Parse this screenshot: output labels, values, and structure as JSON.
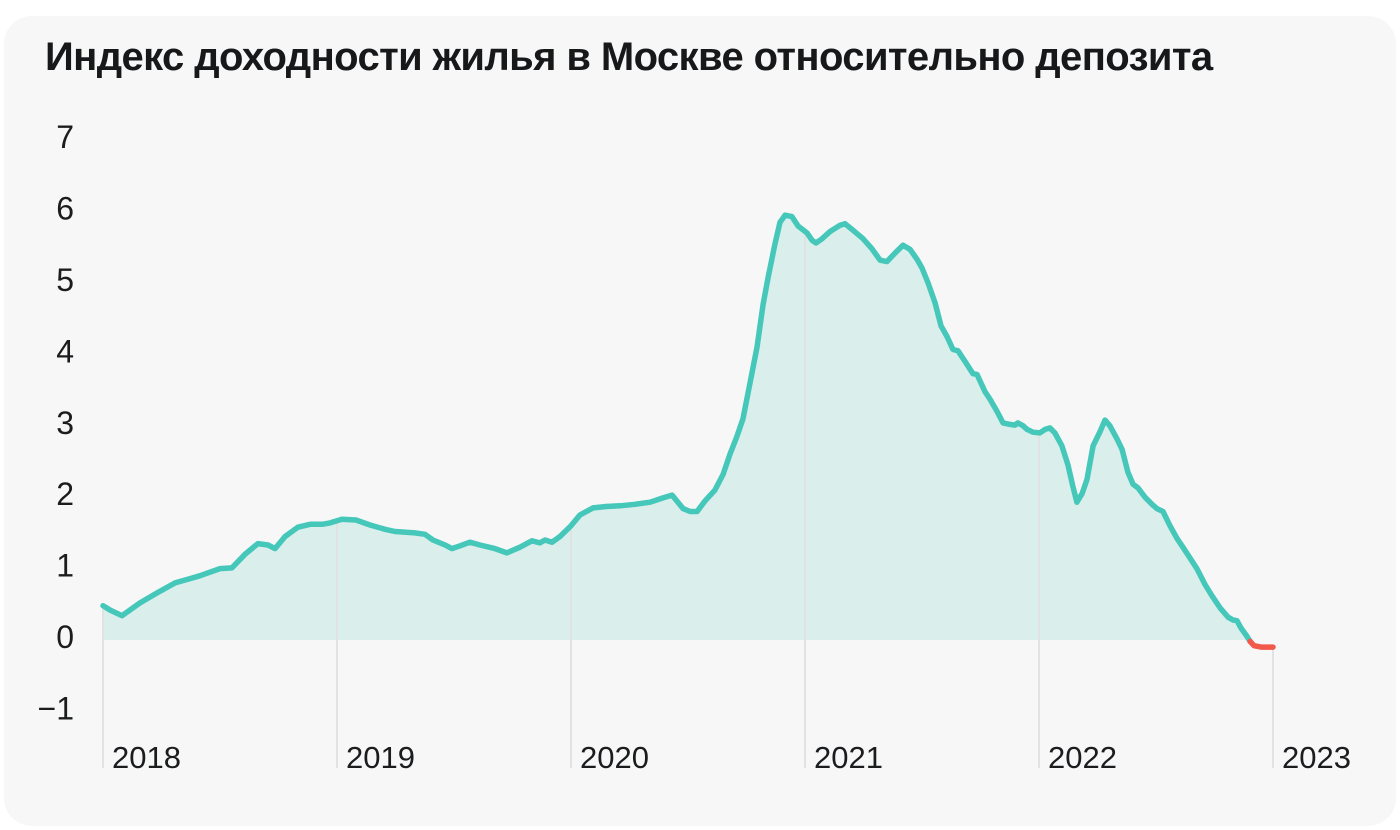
{
  "page": {
    "background_color": "#ffffff",
    "card_background_color": "#f7f7f8"
  },
  "chart_data": {
    "type": "area",
    "title": "Индекс доходности жилья в Москве относительно депозита",
    "xlabel": "",
    "ylabel": "",
    "legend": "none",
    "grid": "vertical drop lines at each year boundary, from curve down to axis labels; no horizontal gridlines",
    "xlim": [
      2018,
      2023
    ],
    "ylim": [
      -1.8,
      7.5
    ],
    "x_ticks": [
      2018,
      2019,
      2020,
      2021,
      2022,
      2023
    ],
    "x_tick_labels": [
      "2018",
      "2019",
      "2020",
      "2021",
      "2022",
      "2023"
    ],
    "y_ticks": [
      7,
      6,
      5,
      4,
      3,
      2,
      1,
      0,
      -1
    ],
    "y_tick_labels": [
      "7",
      "6",
      "5",
      "4",
      "3",
      "2",
      "1",
      "0",
      "−1"
    ],
    "colors": {
      "line": "#45c7ba",
      "fill": "#daeeec",
      "negative_line": "#f2594a",
      "gridline": "#e2e2e2",
      "text": "#1a1c1e"
    },
    "series": [
      {
        "name": "index",
        "color": "#45c7ba",
        "points": [
          [
            2018.0,
            0.48
          ],
          [
            2018.03,
            0.42
          ],
          [
            2018.081,
            0.34
          ],
          [
            2018.158,
            0.52
          ],
          [
            2018.231,
            0.66
          ],
          [
            2018.308,
            0.8
          ],
          [
            2018.372,
            0.86
          ],
          [
            2018.415,
            0.9
          ],
          [
            2018.5,
            1.0
          ],
          [
            2018.551,
            1.01
          ],
          [
            2018.607,
            1.2
          ],
          [
            2018.662,
            1.35
          ],
          [
            2018.705,
            1.33
          ],
          [
            2018.735,
            1.28
          ],
          [
            2018.778,
            1.45
          ],
          [
            2018.833,
            1.58
          ],
          [
            2018.885,
            1.62
          ],
          [
            2018.936,
            1.62
          ],
          [
            2018.97,
            1.64
          ],
          [
            2019.021,
            1.69
          ],
          [
            2019.081,
            1.68
          ],
          [
            2019.141,
            1.61
          ],
          [
            2019.205,
            1.55
          ],
          [
            2019.248,
            1.52
          ],
          [
            2019.333,
            1.5
          ],
          [
            2019.376,
            1.48
          ],
          [
            2019.41,
            1.4
          ],
          [
            2019.462,
            1.33
          ],
          [
            2019.491,
            1.28
          ],
          [
            2019.526,
            1.32
          ],
          [
            2019.568,
            1.37
          ],
          [
            2019.611,
            1.33
          ],
          [
            2019.675,
            1.28
          ],
          [
            2019.726,
            1.22
          ],
          [
            2019.782,
            1.3
          ],
          [
            2019.833,
            1.39
          ],
          [
            2019.867,
            1.36
          ],
          [
            2019.889,
            1.4
          ],
          [
            2019.919,
            1.37
          ],
          [
            2019.953,
            1.45
          ],
          [
            2020.0,
            1.6
          ],
          [
            2020.038,
            1.75
          ],
          [
            2020.094,
            1.85
          ],
          [
            2020.15,
            1.87
          ],
          [
            2020.21,
            1.88
          ],
          [
            2020.274,
            1.9
          ],
          [
            2020.338,
            1.93
          ],
          [
            2020.393,
            1.99
          ],
          [
            2020.432,
            2.03
          ],
          [
            2020.479,
            1.84
          ],
          [
            2020.509,
            1.8
          ],
          [
            2020.539,
            1.8
          ],
          [
            2020.573,
            1.95
          ],
          [
            2020.615,
            2.1
          ],
          [
            2020.65,
            2.32
          ],
          [
            2020.679,
            2.6
          ],
          [
            2020.709,
            2.85
          ],
          [
            2020.735,
            3.1
          ],
          [
            2020.765,
            3.6
          ],
          [
            2020.795,
            4.1
          ],
          [
            2020.821,
            4.7
          ],
          [
            2020.842,
            5.07
          ],
          [
            2020.872,
            5.55
          ],
          [
            2020.893,
            5.85
          ],
          [
            2020.915,
            5.95
          ],
          [
            2020.944,
            5.93
          ],
          [
            2020.97,
            5.8
          ],
          [
            2021.009,
            5.7
          ],
          [
            2021.03,
            5.6
          ],
          [
            2021.047,
            5.56
          ],
          [
            2021.073,
            5.62
          ],
          [
            2021.107,
            5.72
          ],
          [
            2021.15,
            5.81
          ],
          [
            2021.171,
            5.83
          ],
          [
            2021.201,
            5.75
          ],
          [
            2021.248,
            5.62
          ],
          [
            2021.286,
            5.48
          ],
          [
            2021.321,
            5.32
          ],
          [
            2021.35,
            5.3
          ],
          [
            2021.385,
            5.42
          ],
          [
            2021.419,
            5.53
          ],
          [
            2021.449,
            5.47
          ],
          [
            2021.479,
            5.33
          ],
          [
            2021.5,
            5.21
          ],
          [
            2021.526,
            5.0
          ],
          [
            2021.556,
            4.72
          ],
          [
            2021.581,
            4.4
          ],
          [
            2021.607,
            4.25
          ],
          [
            2021.632,
            4.07
          ],
          [
            2021.654,
            4.05
          ],
          [
            2021.684,
            3.9
          ],
          [
            2021.718,
            3.73
          ],
          [
            2021.735,
            3.72
          ],
          [
            2021.769,
            3.48
          ],
          [
            2021.791,
            3.37
          ],
          [
            2021.821,
            3.2
          ],
          [
            2021.846,
            3.04
          ],
          [
            2021.876,
            3.02
          ],
          [
            2021.897,
            3.01
          ],
          [
            2021.91,
            3.04
          ],
          [
            2021.932,
            3.0
          ],
          [
            2021.949,
            2.95
          ],
          [
            2021.974,
            2.91
          ],
          [
            2022.004,
            2.9
          ],
          [
            2022.026,
            2.95
          ],
          [
            2022.047,
            2.97
          ],
          [
            2022.068,
            2.9
          ],
          [
            2022.098,
            2.72
          ],
          [
            2022.124,
            2.45
          ],
          [
            2022.145,
            2.15
          ],
          [
            2022.162,
            1.93
          ],
          [
            2022.184,
            2.05
          ],
          [
            2022.205,
            2.25
          ],
          [
            2022.231,
            2.72
          ],
          [
            2022.261,
            2.92
          ],
          [
            2022.282,
            3.08
          ],
          [
            2022.303,
            3.0
          ],
          [
            2022.333,
            2.82
          ],
          [
            2022.355,
            2.67
          ],
          [
            2022.38,
            2.35
          ],
          [
            2022.402,
            2.18
          ],
          [
            2022.423,
            2.13
          ],
          [
            2022.453,
            2.0
          ],
          [
            2022.483,
            1.9
          ],
          [
            2022.504,
            1.84
          ],
          [
            2022.53,
            1.8
          ],
          [
            2022.56,
            1.6
          ],
          [
            2022.59,
            1.42
          ],
          [
            2022.615,
            1.3
          ],
          [
            2022.645,
            1.15
          ],
          [
            2022.675,
            1.0
          ],
          [
            2022.709,
            0.78
          ],
          [
            2022.739,
            0.62
          ],
          [
            2022.774,
            0.45
          ],
          [
            2022.808,
            0.32
          ],
          [
            2022.829,
            0.28
          ],
          [
            2022.846,
            0.27
          ],
          [
            2022.863,
            0.17
          ],
          [
            2022.889,
            0.05
          ],
          [
            2022.902,
            -0.02
          ]
        ]
      },
      {
        "name": "index-negative-tail",
        "color": "#f2594a",
        "points": [
          [
            2022.902,
            -0.02
          ],
          [
            2022.919,
            -0.08
          ],
          [
            2022.949,
            -0.1
          ],
          [
            2023.0,
            -0.1
          ]
        ]
      }
    ]
  }
}
